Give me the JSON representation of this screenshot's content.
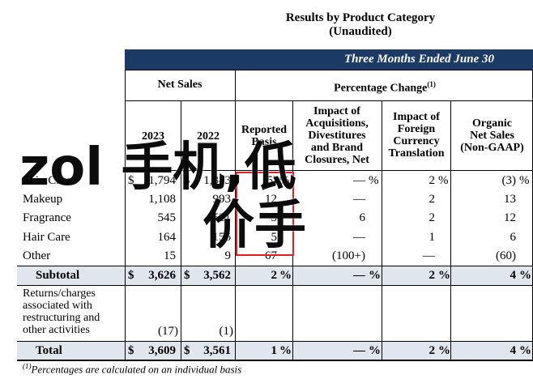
{
  "title": {
    "line1": "Results by Product Category",
    "line2": "(Unaudited)"
  },
  "banner": "Three Months Ended June 30",
  "headers": {
    "net_sales": "Net Sales",
    "pct_change": "Percentage Change",
    "pct_change_note": "(1)",
    "y2023": "2023",
    "y2022": "2022",
    "reported": [
      "Reported",
      "Basis"
    ],
    "acq": [
      "Impact of",
      "Acquisitions,",
      "Divestitures",
      "and Brand",
      "Closures, Net"
    ],
    "fx": [
      "Impact of",
      "Foreign",
      "Currency",
      "Translation"
    ],
    "organic": [
      "Organic",
      "Net Sales",
      "(Non-GAAP)"
    ]
  },
  "rows": [
    {
      "label": "Skin Care",
      "d1": "$",
      "v2023": "1,794",
      "d2": "$",
      "v2022": "1,883",
      "rep": "(5)",
      "rep_pct": "%",
      "acq": "—",
      "acq_pct": "%",
      "fx": "2",
      "fx_pct": "%",
      "org": "(3)",
      "org_pct": "%"
    },
    {
      "label": "Makeup",
      "v2023": "1,108",
      "v2022": "993",
      "rep": "12",
      "acq": "—",
      "fx": "2",
      "org": "13"
    },
    {
      "label": "Fragrance",
      "v2023": "545",
      "v2022": "521",
      "rep": "5",
      "acq": "6",
      "fx": "2",
      "org": "12"
    },
    {
      "label": "Hair Care",
      "v2023": "164",
      "v2022": "156",
      "rep": "5",
      "acq": "—",
      "fx": "1",
      "org": "6"
    },
    {
      "label": "Other",
      "v2023": "15",
      "v2022": "9",
      "rep": "67",
      "acq": "(100+)",
      "fx": "—",
      "org": "(60)"
    }
  ],
  "subtotal": {
    "label": "Subtotal",
    "d1": "$",
    "v2023": "3,626",
    "d2": "$",
    "v2022": "3,562",
    "rep": "2",
    "acq": "—",
    "fx": "2",
    "org": "4",
    "pct": "%"
  },
  "returns": {
    "label": [
      "Returns/charges",
      "associated with",
      "restructuring and",
      "other activities"
    ],
    "v2023": "(17)",
    "v2022": "(1)"
  },
  "total": {
    "label": "Total",
    "d1": "$",
    "v2023": "3,609",
    "d2": "$",
    "v2022": "3,561",
    "rep": "1",
    "acq": "—",
    "fx": "2",
    "org": "4",
    "pct": "%"
  },
  "footnote": {
    "mark": "(1)",
    "text": "Percentages are calculated on an individual basis"
  },
  "watermark": {
    "line1": "zol 手机,低",
    "line2": "价手"
  }
}
